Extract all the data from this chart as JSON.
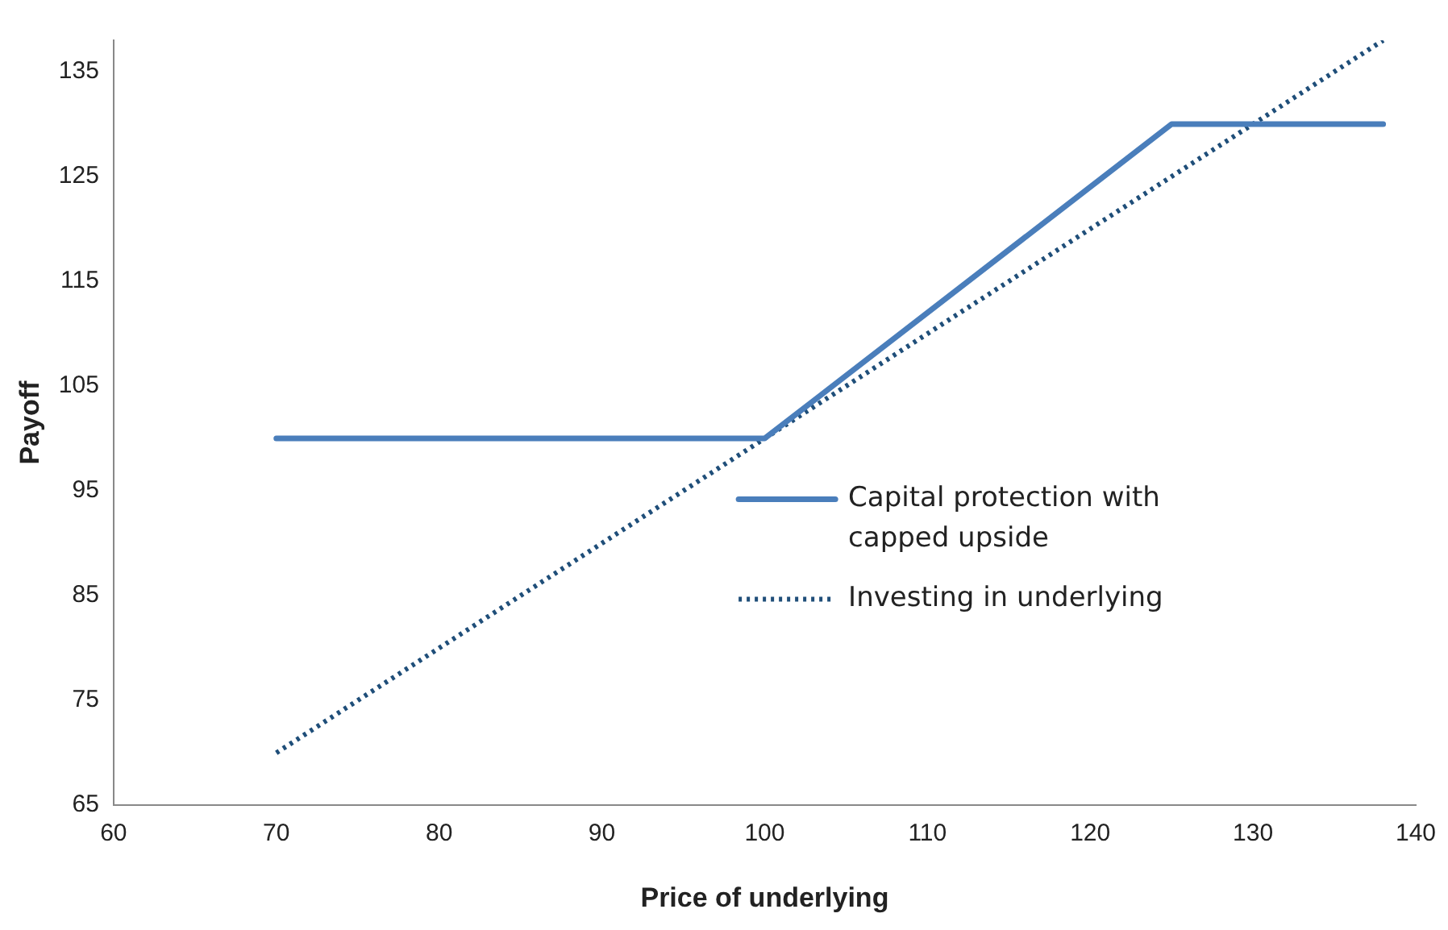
{
  "chart_data": {
    "type": "line",
    "xlabel": "Price of underlying",
    "ylabel": "Payoff",
    "xlim": [
      60,
      140
    ],
    "xticks": [
      60,
      70,
      80,
      90,
      100,
      110,
      120,
      130,
      140
    ],
    "ylim": [
      65,
      138
    ],
    "yticks": [
      65,
      75,
      85,
      95,
      105,
      115,
      125,
      135
    ],
    "grid": false,
    "legend": "right",
    "marker": "none",
    "series": [
      {
        "name": "Capital protection with  capped upside",
        "color": "#4a7ebb",
        "line_style": "solid",
        "x": [
          70,
          100,
          125,
          138
        ],
        "values": [
          100,
          100,
          130,
          130
        ]
      },
      {
        "name": "Investing in underlying",
        "color": "#1f4e79",
        "line_style": "dotted",
        "x": [
          70,
          138
        ],
        "values": [
          70,
          138
        ]
      }
    ]
  }
}
